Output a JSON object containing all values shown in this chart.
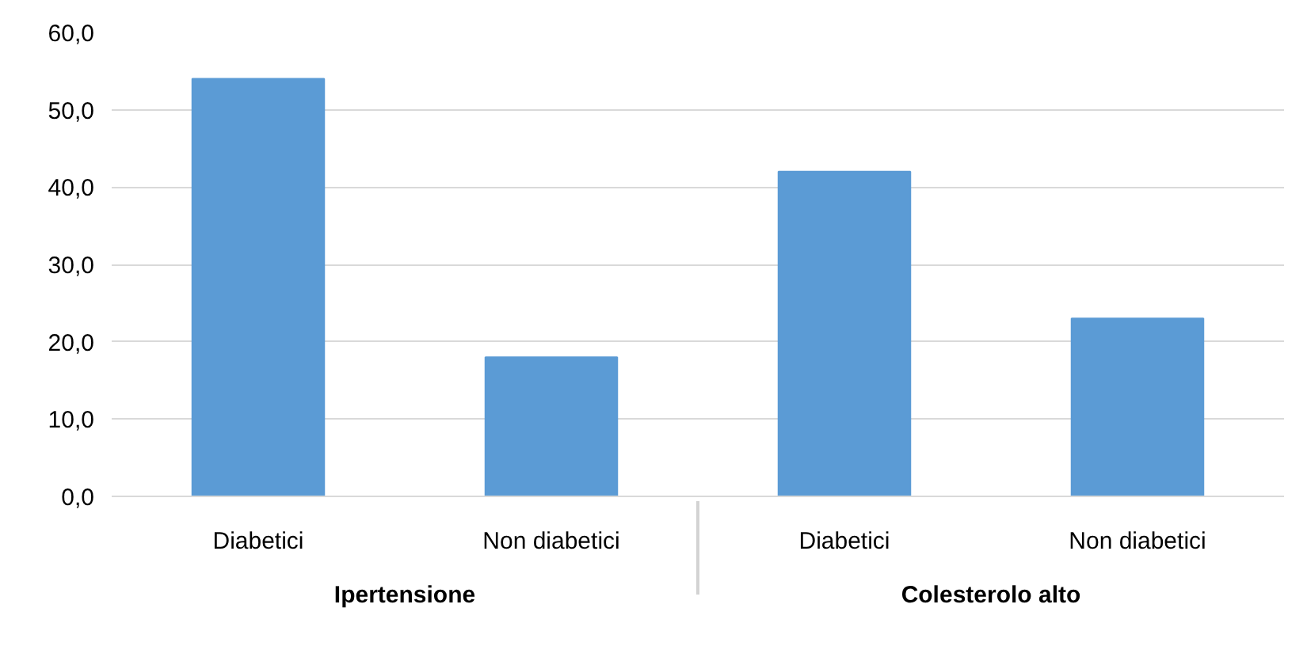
{
  "chart_data": {
    "type": "bar",
    "categories": [
      "Diabetici",
      "Non diabetici",
      "Diabetici",
      "Non diabetici"
    ],
    "values": [
      54,
      18,
      42,
      23
    ],
    "color": "#5b9bd5",
    "ylim": [
      0,
      60
    ],
    "yticks": [
      {
        "value": 0,
        "label": "0,0"
      },
      {
        "value": 10,
        "label": "10,0"
      },
      {
        "value": 20,
        "label": "20,0"
      },
      {
        "value": 30,
        "label": "30,0"
      },
      {
        "value": 40,
        "label": "40,0"
      },
      {
        "value": 50,
        "label": "50,0"
      },
      {
        "value": 60,
        "label": "60,0"
      }
    ],
    "grid": "y",
    "annotations": [
      "Ipertensione",
      "Colesterolo alto"
    ]
  }
}
